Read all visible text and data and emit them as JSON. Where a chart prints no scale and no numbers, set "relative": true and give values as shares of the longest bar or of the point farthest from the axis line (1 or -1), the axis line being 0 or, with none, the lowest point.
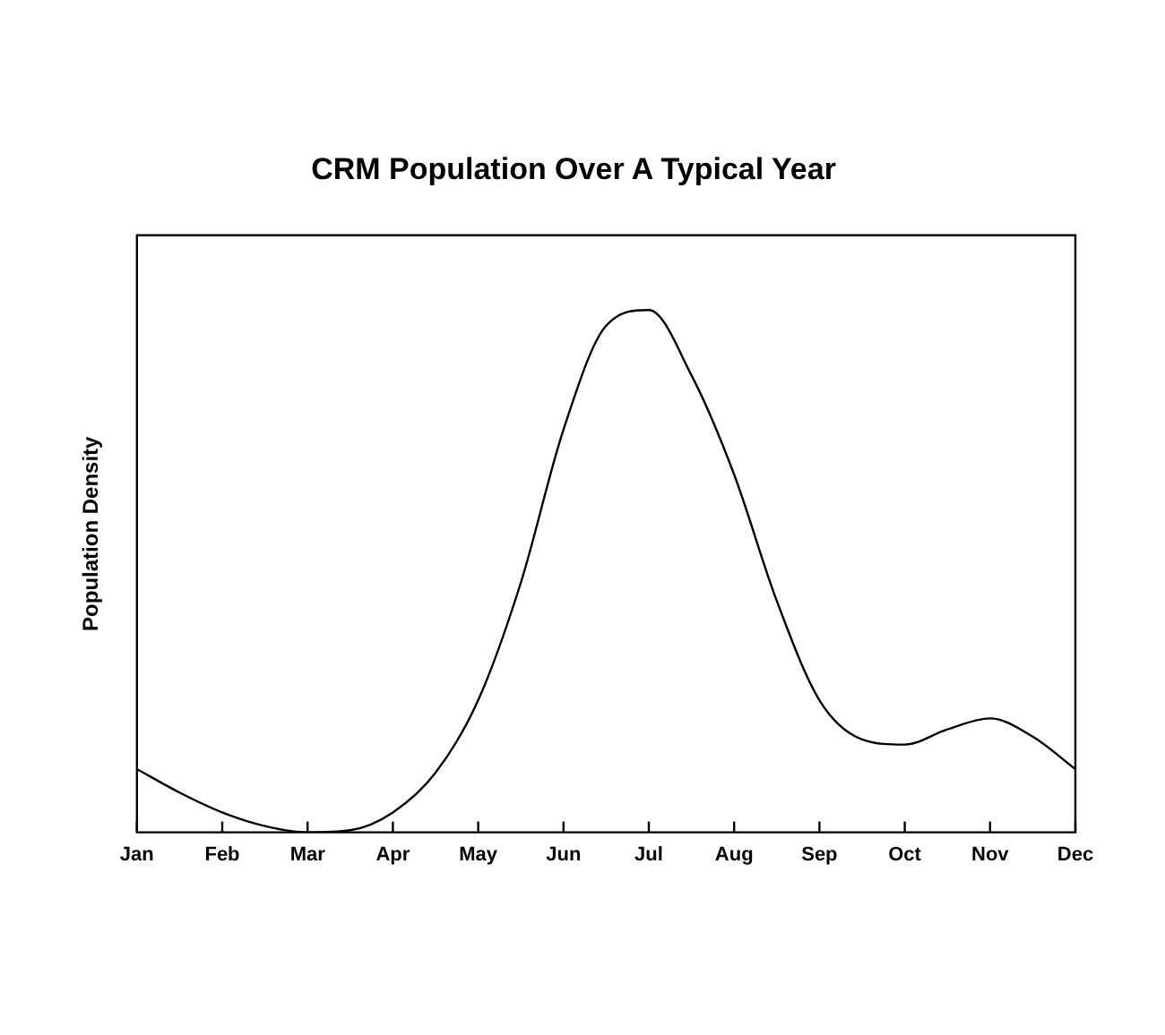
{
  "chart_data": {
    "type": "line",
    "title": "CRM Population Over A Typical Year",
    "ylabel": "Population Density",
    "relative": true,
    "grid": false,
    "legend": false,
    "marker": "none",
    "line_style": "solid",
    "color": "#000000",
    "categories": [
      "Jan",
      null,
      "Feb",
      null,
      "Mar",
      null,
      "Apr",
      null,
      "May",
      null,
      "Jun",
      null,
      "Jul",
      null,
      "Aug",
      null,
      "Sep",
      null,
      "Oct",
      null,
      "Nov",
      null,
      "Dec"
    ],
    "values": [
      0.121,
      0.076,
      0.038,
      0.012,
      0,
      0.004,
      0.038,
      0.114,
      0.253,
      0.478,
      0.771,
      0.97,
      1,
      0.875,
      0.685,
      0.443,
      0.253,
      0.178,
      0.168,
      0.197,
      0.218,
      0.183,
      0.121
    ]
  }
}
